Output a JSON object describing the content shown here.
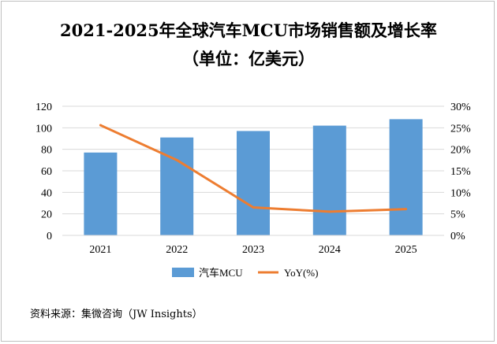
{
  "chart_data": {
    "type": "bar",
    "title": "2021-2025年全球汽车MCU市场销售额及增长率",
    "subtitle": "（单位：亿美元）",
    "categories": [
      "2021",
      "2022",
      "2023",
      "2024",
      "2025"
    ],
    "series": [
      {
        "name": "汽车MCU",
        "type": "bar",
        "axis": "left",
        "values": [
          77,
          91,
          97,
          102,
          108
        ],
        "color": "#5b9bd5"
      },
      {
        "name": "YoY(%)",
        "type": "line",
        "axis": "right",
        "values": [
          25.6,
          17.5,
          6.5,
          5.5,
          6.1
        ],
        "color": "#ed7d31"
      }
    ],
    "y_left": {
      "min": 0,
      "max": 120,
      "ticks": [
        0,
        20,
        40,
        60,
        80,
        100,
        120
      ]
    },
    "y_right": {
      "min": 0,
      "max": 30,
      "ticks": [
        "0%",
        "5%",
        "10%",
        "15%",
        "20%",
        "25%",
        "30%"
      ]
    },
    "grid": true,
    "legend": "bottom"
  },
  "source_text": "资料来源：集微咨询（JW Insights）"
}
